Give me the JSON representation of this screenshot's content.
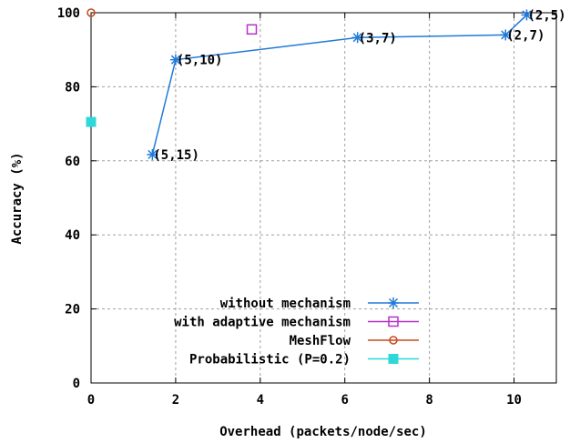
{
  "chart_data": {
    "type": "scatter",
    "xlabel": "Overhead (packets/node/sec)",
    "ylabel": "Accuracy (%)",
    "xlim": [
      0,
      11
    ],
    "ylim": [
      0,
      100
    ],
    "xticks": [
      "0",
      "2",
      "4",
      "6",
      "8",
      "10"
    ],
    "yticks": [
      "0",
      "20",
      "40",
      "60",
      "80",
      "100"
    ],
    "grid": true,
    "legend_position": "bottom-right",
    "series": [
      {
        "name": "without mechanism",
        "color": "#1f7ad8",
        "marker": "asterisk",
        "line": true,
        "points": [
          {
            "x": 1.45,
            "y": 61.7,
            "label": "(5,15)"
          },
          {
            "x": 2.0,
            "y": 87.3,
            "label": "(5,10)"
          },
          {
            "x": 6.3,
            "y": 93.3,
            "label": "(3,7)"
          },
          {
            "x": 9.8,
            "y": 94.0,
            "label": "(2,7)"
          },
          {
            "x": 10.3,
            "y": 99.4,
            "label": "(2,5)"
          }
        ]
      },
      {
        "name": "with adaptive mechanism",
        "color": "#b530c8",
        "marker": "square-open",
        "line": false,
        "points": [
          {
            "x": 3.8,
            "y": 95.5
          }
        ]
      },
      {
        "name": "MeshFlow",
        "color": "#c8481a",
        "marker": "circle-open",
        "line": false,
        "points": [
          {
            "x": 0.0,
            "y": 100.0
          }
        ]
      },
      {
        "name": "Probabilistic (P=0.2)",
        "color": "#2fd8d8",
        "marker": "square-filled",
        "line": false,
        "points": [
          {
            "x": 0.0,
            "y": 70.5
          }
        ]
      }
    ]
  }
}
